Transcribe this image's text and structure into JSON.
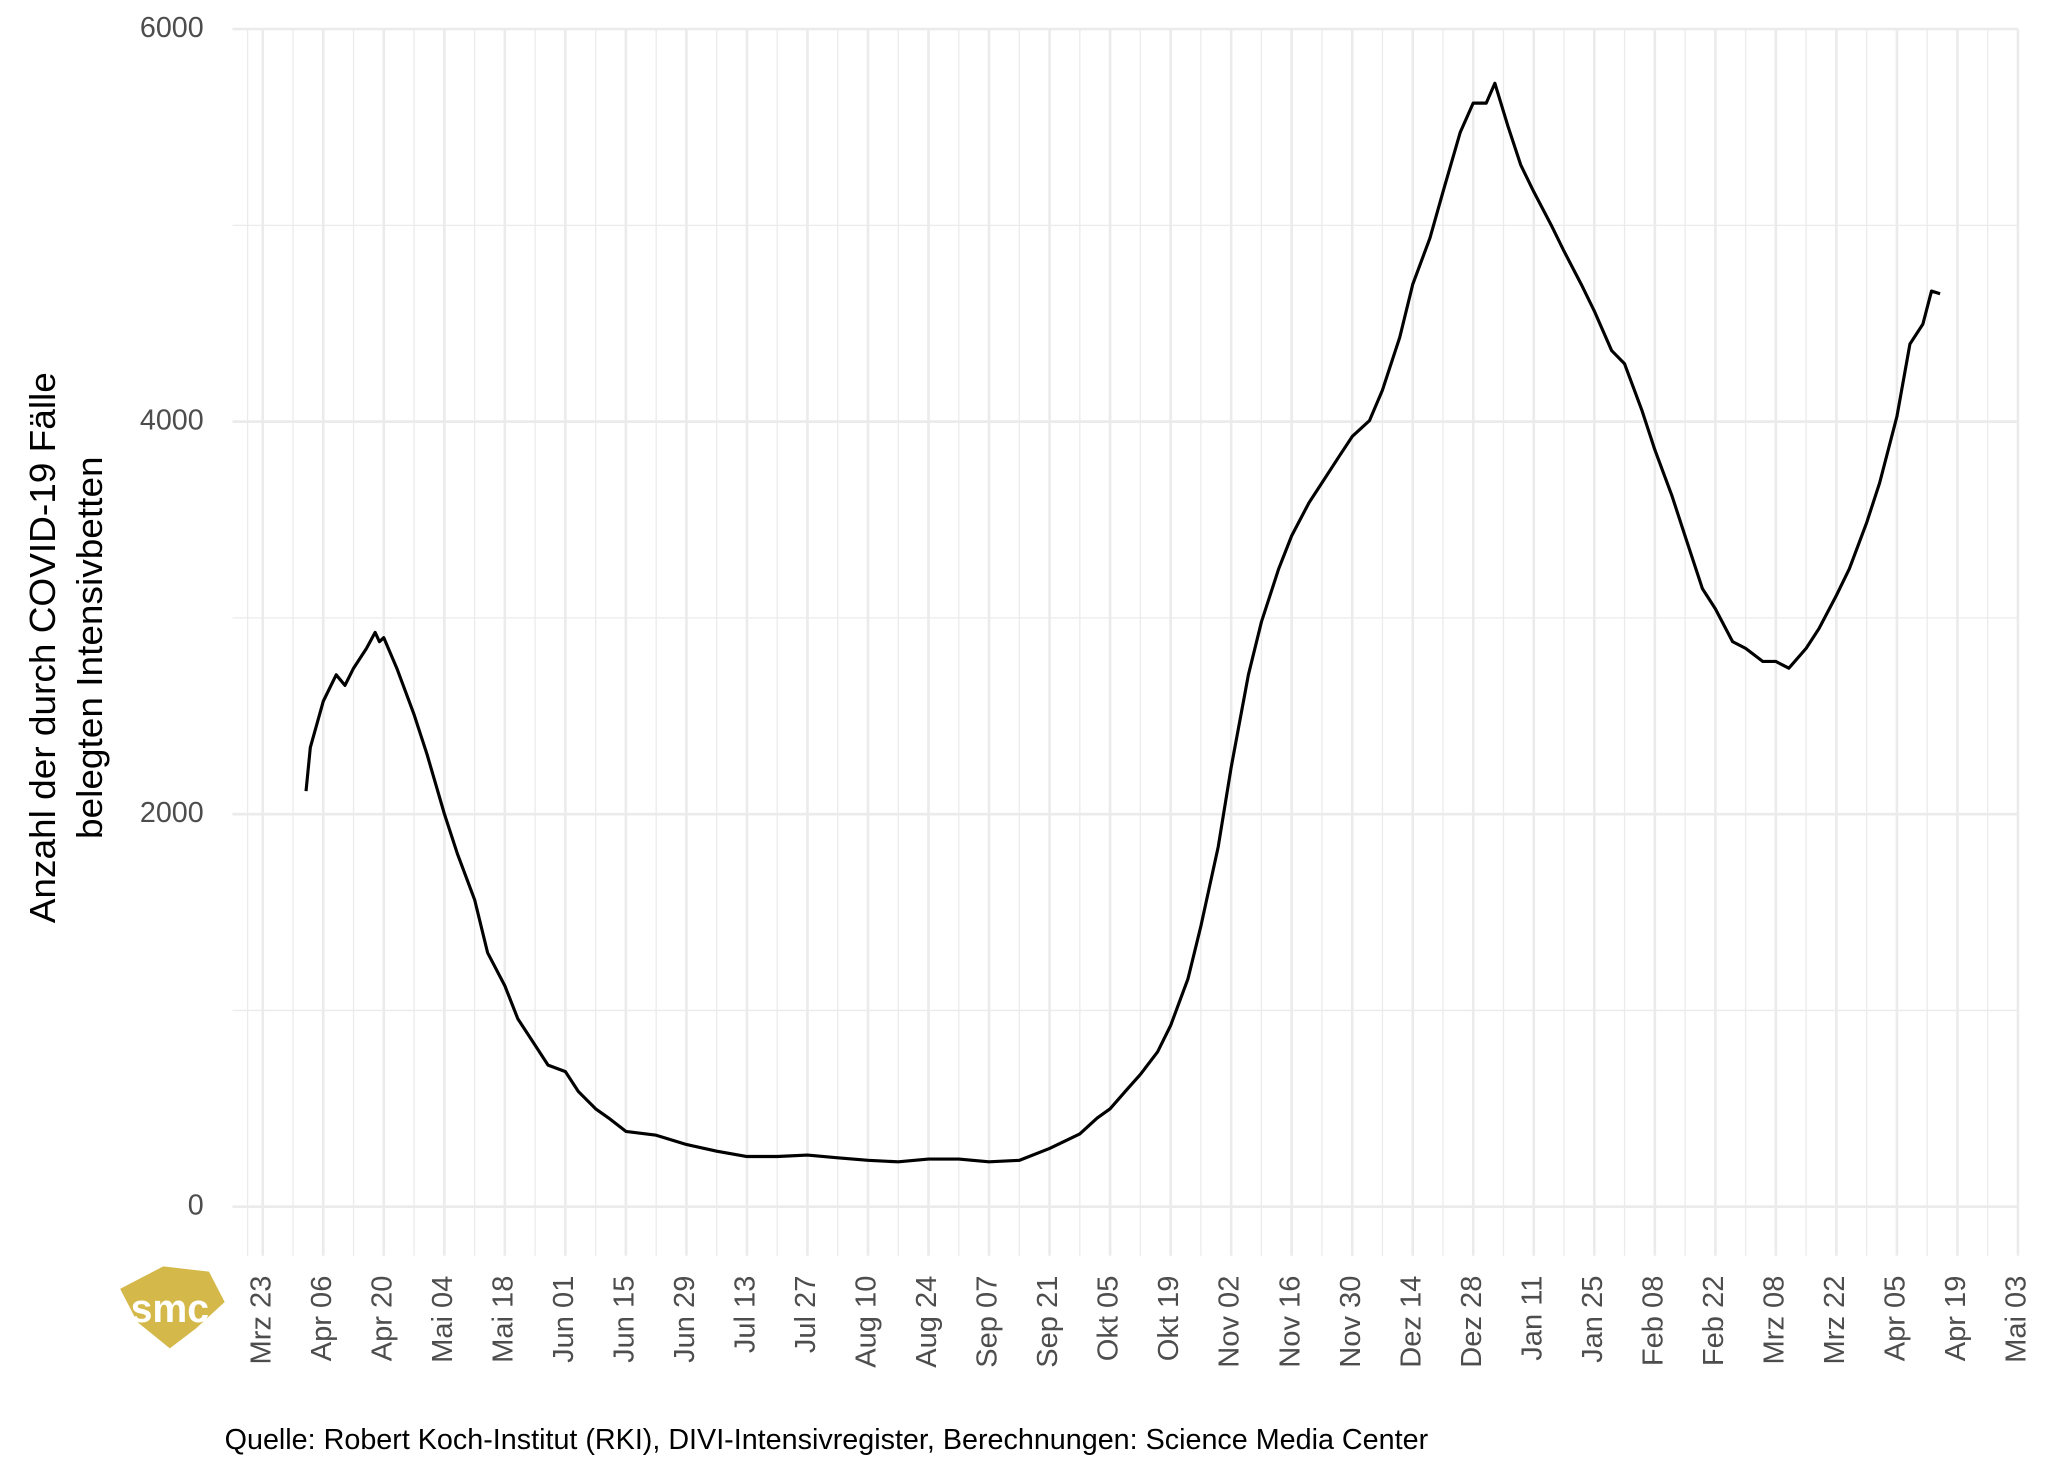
{
  "chart_data": {
    "type": "line",
    "y_label": [
      "Anzahl der durch COVID-19 Fälle",
      "belegten Intensivbetten"
    ],
    "source": "Quelle: Robert Koch-Institut (RKI), DIVI-Intensivregister, Berechnungen: Science Media Center",
    "logo": "smc",
    "color": "#000000",
    "grid": true,
    "ylim": [
      -250,
      6000
    ],
    "yticks": [
      0,
      2000,
      4000,
      6000
    ],
    "xlim": [
      "Mrz 16",
      "Mai 03"
    ],
    "xticks": [
      "Mrz 23",
      "Apr 06",
      "Apr 20",
      "Mai 04",
      "Mai 18",
      "Jun 01",
      "Jun 15",
      "Jun 29",
      "Jul 13",
      "Jul 27",
      "Aug 10",
      "Aug 24",
      "Sep 07",
      "Sep 21",
      "Okt 05",
      "Okt 19",
      "Nov 02",
      "Nov 16",
      "Nov 30",
      "Dez 14",
      "Dez 28",
      "Jan 11",
      "Jan 25",
      "Feb 08",
      "Feb 22",
      "Mrz 08",
      "Mrz 22",
      "Apr 05",
      "Apr 19",
      "Mai 03"
    ],
    "x": [
      "Apr 02",
      "Apr 03",
      "Apr 06",
      "Apr 09",
      "Apr 11",
      "Apr 13",
      "Apr 16",
      "Apr 18",
      "Apr 19",
      "Apr 20",
      "Apr 23",
      "Apr 27",
      "Apr 30",
      "Mai 04",
      "Mai 07",
      "Mai 11",
      "Mai 14",
      "Mai 18",
      "Mai 21",
      "Mai 25",
      "Mai 28",
      "Jun 01",
      "Jun 04",
      "Jun 08",
      "Jun 11",
      "Jun 15",
      "Jun 22",
      "Jun 29",
      "Jul 06",
      "Jul 13",
      "Jul 20",
      "Jul 27",
      "Aug 03",
      "Aug 10",
      "Aug 17",
      "Aug 24",
      "Aug 31",
      "Sep 07",
      "Sep 14",
      "Sep 21",
      "Sep 28",
      "Okt 02",
      "Okt 05",
      "Okt 09",
      "Okt 12",
      "Okt 16",
      "Okt 19",
      "Okt 23",
      "Okt 26",
      "Okt 30",
      "Nov 02",
      "Nov 06",
      "Nov 09",
      "Nov 13",
      "Nov 16",
      "Nov 20",
      "Nov 23",
      "Nov 27",
      "Nov 30",
      "Dez 04",
      "Dez 07",
      "Dez 11",
      "Dez 14",
      "Dez 18",
      "Dez 21",
      "Dez 25",
      "Dez 28",
      "Dez 31",
      "Jan 02",
      "Jan 05",
      "Jan 08",
      "Jan 11",
      "Jan 15",
      "Jan 18",
      "Jan 22",
      "Jan 25",
      "Jan 29",
      "Feb 01",
      "Feb 05",
      "Feb 08",
      "Feb 12",
      "Feb 15",
      "Feb 19",
      "Feb 22",
      "Feb 26",
      "Mrz 01",
      "Mrz 05",
      "Mrz 08",
      "Mrz 11",
      "Mrz 15",
      "Mrz 18",
      "Mrz 22",
      "Mrz 25",
      "Mrz 29",
      "Apr 01",
      "Apr 05",
      "Apr 08",
      "Apr 11",
      "Apr 13",
      "Apr 15"
    ],
    "values": [
      2117,
      2340,
      2575,
      2710,
      2656,
      2744,
      2845,
      2926,
      2879,
      2899,
      2744,
      2508,
      2306,
      2002,
      1800,
      1564,
      1294,
      1126,
      957,
      823,
      721,
      688,
      587,
      499,
      452,
      384,
      364,
      317,
      283,
      256,
      256,
      263,
      249,
      236,
      229,
      243,
      243,
      229,
      236,
      297,
      371,
      452,
      499,
      600,
      674,
      789,
      924,
      1160,
      1429,
      1834,
      2238,
      2710,
      2980,
      3250,
      3418,
      3587,
      3688,
      3823,
      3924,
      4005,
      4160,
      4430,
      4699,
      4935,
      5171,
      5474,
      5623,
      5623,
      5724,
      5508,
      5306,
      5171,
      5003,
      4868,
      4699,
      4564,
      4362,
      4295,
      4059,
      3856,
      3620,
      3418,
      3149,
      3047,
      2879,
      2845,
      2778,
      2778,
      2744,
      2845,
      2946,
      3115,
      3250,
      3486,
      3688,
      4025,
      4396,
      4497,
      4665,
      4652
    ]
  }
}
